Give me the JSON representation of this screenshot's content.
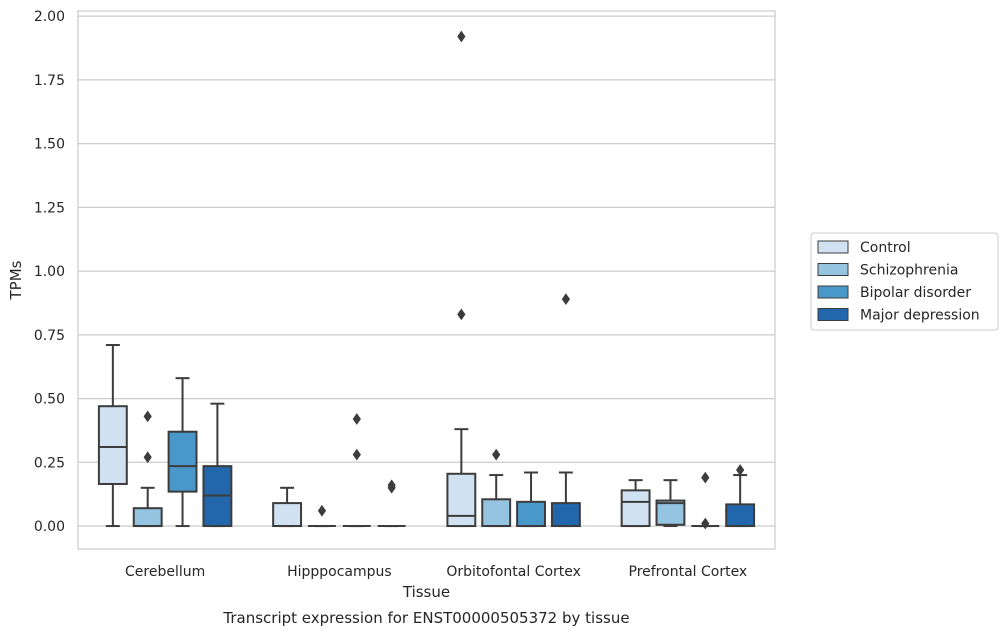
{
  "chart_data": {
    "type": "box",
    "title": "",
    "caption": "Transcript expression for ENST00000505372 by tissue",
    "xlabel": "Tissue",
    "ylabel": "TPMs",
    "ylim": [
      -0.09,
      2.02
    ],
    "yticks": [
      0.0,
      0.25,
      0.5,
      0.75,
      1.0,
      1.25,
      1.5,
      1.75,
      2.0
    ],
    "ytick_labels": [
      "0.00",
      "0.25",
      "0.50",
      "0.75",
      "1.00",
      "1.25",
      "1.50",
      "1.75",
      "2.00"
    ],
    "grid": "horizontal",
    "legend_position": "right",
    "categories": [
      "Cerebellum",
      "Hipppocampus",
      "Orbitofontal Cortex",
      "Prefrontal Cortex"
    ],
    "series": [
      {
        "name": "Control",
        "color": "#d0e1f2",
        "boxes": [
          {
            "whislo": 0.0,
            "q1": 0.165,
            "med": 0.31,
            "q3": 0.47,
            "whishi": 0.71,
            "fliers": []
          },
          {
            "whislo": 0.0,
            "q1": 0.0,
            "med": 0.0,
            "q3": 0.09,
            "whishi": 0.15,
            "fliers": []
          },
          {
            "whislo": 0.0,
            "q1": 0.0,
            "med": 0.04,
            "q3": 0.205,
            "whishi": 0.38,
            "fliers": [
              0.83,
              1.92
            ]
          },
          {
            "whislo": 0.0,
            "q1": 0.0,
            "med": 0.095,
            "q3": 0.14,
            "whishi": 0.18,
            "fliers": []
          }
        ]
      },
      {
        "name": "Schizophrenia",
        "color": "#94c4df",
        "boxes": [
          {
            "whislo": 0.0,
            "q1": 0.0,
            "med": 0.0,
            "q3": 0.07,
            "whishi": 0.15,
            "fliers": [
              0.27,
              0.43
            ]
          },
          {
            "whislo": 0.0,
            "q1": 0.0,
            "med": 0.0,
            "q3": 0.0,
            "whishi": 0.0,
            "fliers": [
              0.06
            ]
          },
          {
            "whislo": 0.0,
            "q1": 0.0,
            "med": 0.0,
            "q3": 0.105,
            "whishi": 0.2,
            "fliers": [
              0.28
            ]
          },
          {
            "whislo": 0.0,
            "q1": 0.005,
            "med": 0.09,
            "q3": 0.1,
            "whishi": 0.18,
            "fliers": []
          }
        ]
      },
      {
        "name": "Bipolar disorder",
        "color": "#4a98c9",
        "boxes": [
          {
            "whislo": 0.0,
            "q1": 0.135,
            "med": 0.235,
            "q3": 0.37,
            "whishi": 0.58,
            "fliers": []
          },
          {
            "whislo": 0.0,
            "q1": 0.0,
            "med": 0.0,
            "q3": 0.0,
            "whishi": 0.0,
            "fliers": [
              0.28,
              0.42
            ]
          },
          {
            "whislo": 0.0,
            "q1": 0.0,
            "med": 0.0,
            "q3": 0.095,
            "whishi": 0.21,
            "fliers": []
          },
          {
            "whislo": 0.0,
            "q1": 0.0,
            "med": 0.0,
            "q3": 0.0,
            "whishi": 0.0,
            "fliers": [
              0.01,
              0.19
            ]
          }
        ]
      },
      {
        "name": "Major depression",
        "color": "#2266ac",
        "boxes": [
          {
            "whislo": 0.0,
            "q1": 0.0,
            "med": 0.12,
            "q3": 0.235,
            "whishi": 0.48,
            "fliers": []
          },
          {
            "whislo": 0.0,
            "q1": 0.0,
            "med": 0.0,
            "q3": 0.0,
            "whishi": 0.0,
            "fliers": [
              0.15,
              0.16
            ]
          },
          {
            "whislo": 0.0,
            "q1": 0.0,
            "med": 0.0,
            "q3": 0.09,
            "whishi": 0.21,
            "fliers": [
              0.89
            ]
          },
          {
            "whislo": 0.0,
            "q1": 0.0,
            "med": 0.0,
            "q3": 0.085,
            "whishi": 0.2,
            "fliers": [
              0.22
            ]
          }
        ]
      }
    ]
  }
}
